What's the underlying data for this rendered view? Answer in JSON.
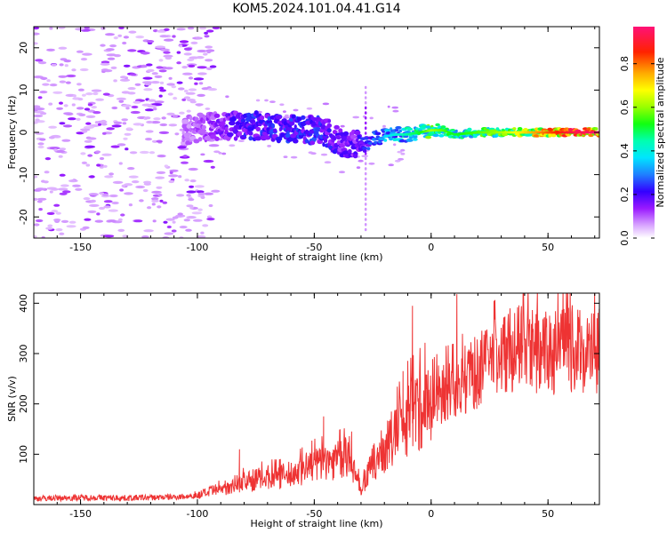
{
  "title": "KOM5.2024.101.04.41.G14",
  "chart_data": [
    {
      "type": "heatmap",
      "xlabel": "Height of straight line (km)",
      "ylabel": "Frequency (Hz)",
      "xlim": [
        -170,
        72
      ],
      "ylim": [
        -25,
        25
      ],
      "xticks": [
        -150,
        -100,
        -50,
        0,
        50
      ],
      "yticks": [
        -20,
        -10,
        0,
        10,
        20
      ],
      "colorbar": {
        "label": "Normalized spectral amplitude",
        "range": [
          0,
          0.97
        ],
        "ticks": [
          0.0,
          0.2,
          0.4,
          0.6,
          0.8
        ]
      },
      "ridge": {
        "x": [
          -105,
          -95,
          -85,
          -75,
          -65,
          -55,
          -45,
          -38,
          -32,
          -28,
          -25,
          -20,
          -15,
          -10,
          -5,
          0,
          5,
          10,
          20,
          30,
          40,
          50,
          60,
          72
        ],
        "freq": [
          0.5,
          1.5,
          1.5,
          1.5,
          1.0,
          1.0,
          0.0,
          -2.5,
          -3.0,
          -3.0,
          -1.5,
          -1.0,
          -0.5,
          -0.5,
          0.0,
          0.5,
          0.5,
          -0.5,
          0.0,
          0.0,
          0.0,
          0.0,
          0.0,
          0.0
        ],
        "amplitude": [
          0.1,
          0.15,
          0.2,
          0.25,
          0.25,
          0.25,
          0.25,
          0.2,
          0.2,
          0.25,
          0.3,
          0.35,
          0.4,
          0.45,
          0.5,
          0.6,
          0.55,
          0.5,
          0.55,
          0.6,
          0.7,
          0.8,
          0.9,
          0.95
        ]
      }
    },
    {
      "type": "line",
      "xlabel": "Height of straight line (km)",
      "ylabel": "SNR (v/v)",
      "xlim": [
        -170,
        72
      ],
      "ylim": [
        0,
        420
      ],
      "xticks": [
        -150,
        -100,
        -50,
        0,
        50
      ],
      "yticks": [
        100,
        200,
        300,
        400
      ],
      "series": [
        {
          "color": "#ee3333",
          "x": [
            -170,
            -150,
            -130,
            -110,
            -100,
            -95,
            -90,
            -85,
            -80,
            -75,
            -70,
            -65,
            -60,
            -55,
            -50,
            -45,
            -40,
            -35,
            -30,
            -25,
            -20,
            -15,
            -10,
            -5,
            0,
            5,
            10,
            15,
            20,
            25,
            30,
            35,
            40,
            45,
            50,
            55,
            60,
            65,
            72
          ],
          "values": [
            12,
            14,
            13,
            15,
            18,
            25,
            30,
            40,
            45,
            50,
            55,
            55,
            60,
            70,
            80,
            85,
            90,
            95,
            30,
            80,
            110,
            140,
            175,
            190,
            205,
            225,
            230,
            250,
            265,
            285,
            300,
            310,
            310,
            305,
            300,
            305,
            310,
            305,
            305
          ],
          "peaks": [
            {
              "x": -82,
              "y": 110
            },
            {
              "x": -46,
              "y": 175
            },
            {
              "x": -34,
              "y": 145
            },
            {
              "x": -12,
              "y": 265
            },
            {
              "x": -8,
              "y": 395
            },
            {
              "x": 11,
              "y": 418
            },
            {
              "x": 40,
              "y": 330
            }
          ]
        }
      ]
    }
  ]
}
